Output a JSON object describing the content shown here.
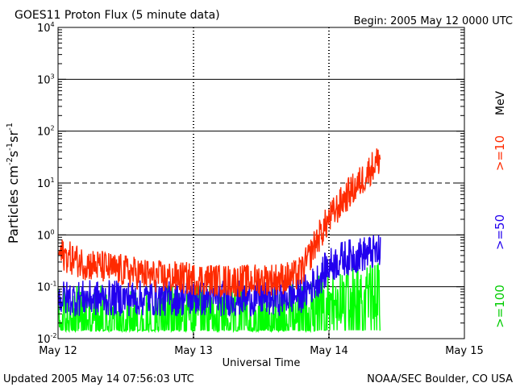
{
  "chart_data": {
    "type": "line",
    "title": "GOES11 Proton Flux (5 minute data)",
    "begin_label": "Begin: 2005 May 12 0000 UTC",
    "xlabel": "Universal Time",
    "ylabel_parts": [
      "Particles cm",
      "-2",
      "s",
      "-1",
      "sr",
      "-1"
    ],
    "y_scale": "log",
    "ylim": [
      0.01,
      10000
    ],
    "x_domain_days": [
      0,
      3
    ],
    "x_ticks": [
      {
        "day": 0,
        "label": "May 12"
      },
      {
        "day": 1,
        "label": "May 13"
      },
      {
        "day": 2,
        "label": "May 14"
      },
      {
        "day": 3,
        "label": "May 15"
      }
    ],
    "y_ticks": [
      {
        "exp": -2,
        "mant": "10",
        "sup": "-2"
      },
      {
        "exp": -1,
        "mant": "10",
        "sup": "-1"
      },
      {
        "exp": 0,
        "mant": "10",
        "sup": "0"
      },
      {
        "exp": 1,
        "mant": "10",
        "sup": "1"
      },
      {
        "exp": 2,
        "mant": "10",
        "sup": "2"
      },
      {
        "exp": 3,
        "mant": "10",
        "sup": "3"
      },
      {
        "exp": 4,
        "mant": "10",
        "sup": "4"
      }
    ],
    "threshold_line": {
      "value": 10,
      "style": "dashed"
    },
    "series": [
      {
        "name": ">=10",
        "color": "#ff2a00",
        "points": [
          [
            0,
            0.45
          ],
          [
            0.1,
            0.35
          ],
          [
            0.2,
            0.28
          ],
          [
            0.3,
            0.25
          ],
          [
            0.4,
            0.22
          ],
          [
            0.5,
            0.2
          ],
          [
            0.6,
            0.18
          ],
          [
            0.7,
            0.16
          ],
          [
            0.8,
            0.15
          ],
          [
            0.9,
            0.15
          ],
          [
            1.0,
            0.14
          ],
          [
            1.1,
            0.14
          ],
          [
            1.2,
            0.13
          ],
          [
            1.3,
            0.13
          ],
          [
            1.4,
            0.13
          ],
          [
            1.5,
            0.14
          ],
          [
            1.6,
            0.14
          ],
          [
            1.7,
            0.15
          ],
          [
            1.75,
            0.16
          ],
          [
            1.8,
            0.2
          ],
          [
            1.85,
            0.35
          ],
          [
            1.9,
            0.7
          ],
          [
            1.95,
            1.2
          ],
          [
            2.0,
            2.0
          ],
          [
            2.05,
            3.0
          ],
          [
            2.1,
            4.5
          ],
          [
            2.15,
            6.5
          ],
          [
            2.2,
            8.5
          ],
          [
            2.25,
            12
          ],
          [
            2.3,
            18
          ],
          [
            2.35,
            25
          ],
          [
            2.38,
            30
          ]
        ],
        "noise": 0.32
      },
      {
        "name": ">=50",
        "color": "#2200ee",
        "points": [
          [
            0,
            0.06
          ],
          [
            0.2,
            0.06
          ],
          [
            0.4,
            0.06
          ],
          [
            0.6,
            0.06
          ],
          [
            0.8,
            0.06
          ],
          [
            1.0,
            0.06
          ],
          [
            1.2,
            0.06
          ],
          [
            1.4,
            0.06
          ],
          [
            1.6,
            0.06
          ],
          [
            1.8,
            0.07
          ],
          [
            1.9,
            0.12
          ],
          [
            2.0,
            0.25
          ],
          [
            2.1,
            0.35
          ],
          [
            2.2,
            0.4
          ],
          [
            2.3,
            0.45
          ],
          [
            2.38,
            0.45
          ]
        ],
        "noise": 0.35
      },
      {
        "name": ">=100",
        "color": "#00ff00",
        "points": [
          [
            0,
            0.03
          ],
          [
            0.5,
            0.03
          ],
          [
            1.0,
            0.03
          ],
          [
            1.5,
            0.03
          ],
          [
            1.8,
            0.035
          ],
          [
            1.95,
            0.05
          ],
          [
            2.1,
            0.07
          ],
          [
            2.2,
            0.08
          ],
          [
            2.3,
            0.08
          ],
          [
            2.38,
            0.09
          ]
        ],
        "noise": 0.55
      }
    ],
    "legend": {
      "unit": "MeV",
      "entries": [
        {
          "label": ">=10",
          "color": "#ff2a00"
        },
        {
          "label": ">=50",
          "color": "#2200ee"
        },
        {
          "label": ">=100",
          "color": "#00cc00"
        }
      ]
    }
  },
  "footer": {
    "updated": "Updated 2005 May 14 07:56:03 UTC",
    "credit": "NOAA/SEC Boulder, CO USA"
  }
}
